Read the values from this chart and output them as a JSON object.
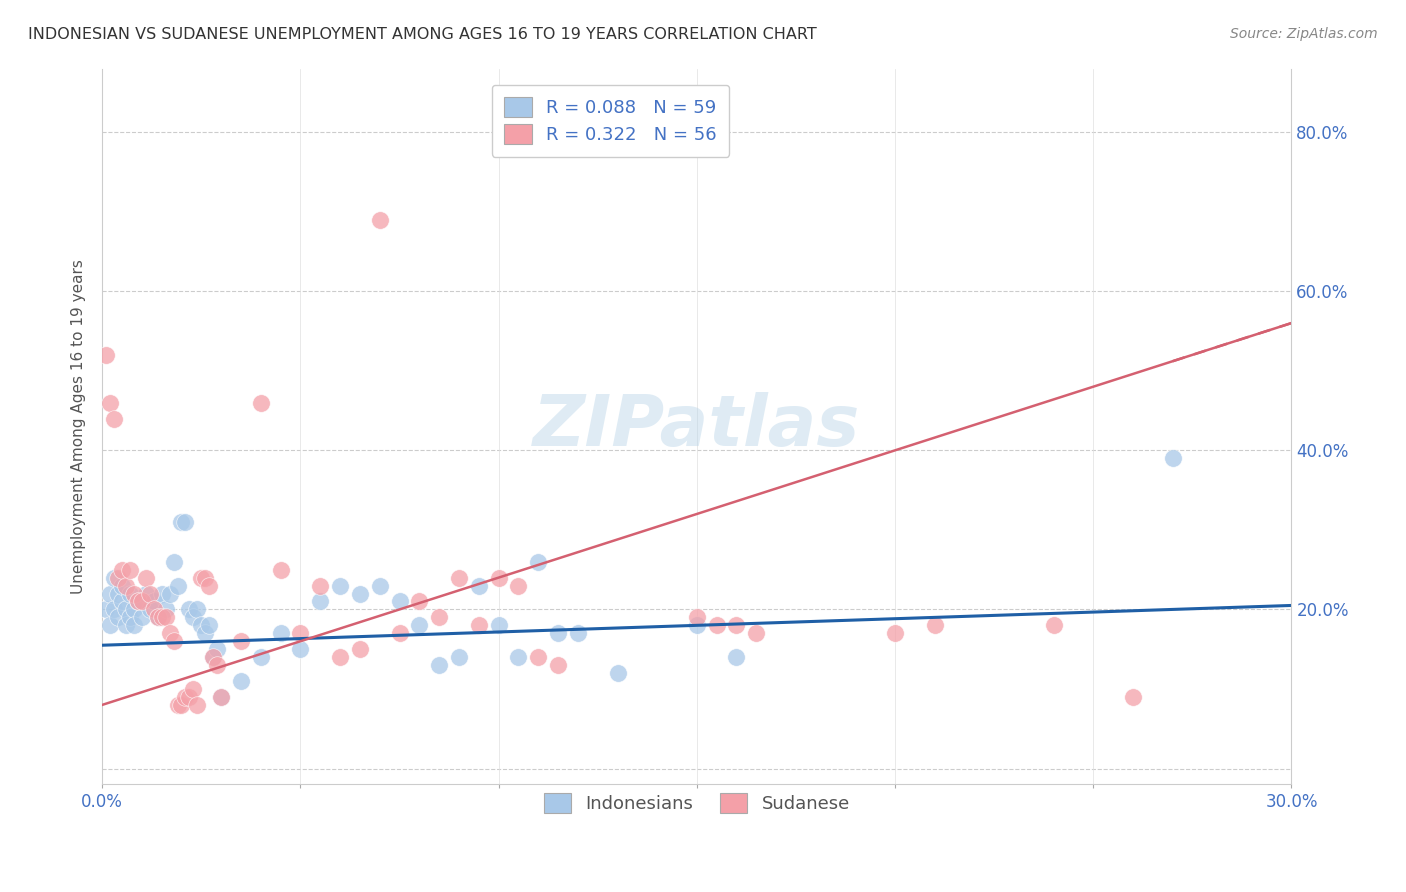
{
  "title": "INDONESIAN VS SUDANESE UNEMPLOYMENT AMONG AGES 16 TO 19 YEARS CORRELATION CHART",
  "source": "Source: ZipAtlas.com",
  "ylabel": "Unemployment Among Ages 16 to 19 years",
  "xlim": [
    0.0,
    0.3
  ],
  "ylim": [
    -0.02,
    0.88
  ],
  "xticks": [
    0.0,
    0.05,
    0.1,
    0.15,
    0.2,
    0.25,
    0.3
  ],
  "xtick_labels": [
    "0.0%",
    "",
    "",
    "",
    "",
    "",
    "30.0%"
  ],
  "yticks": [
    0.0,
    0.2,
    0.4,
    0.6,
    0.8
  ],
  "ytick_right_labels": [
    "",
    "20.0%",
    "40.0%",
    "60.0%",
    "80.0%"
  ],
  "indonesian_color": "#a8c8e8",
  "sudanese_color": "#f4a0a8",
  "indonesian_line_color": "#1f5fa6",
  "sudanese_line_color": "#d46070",
  "watermark": "ZIPatlas",
  "indo_line_y0": 0.155,
  "indo_line_y1": 0.205,
  "sudo_line_y0": 0.08,
  "sudo_line_y1": 0.56,
  "indonesian_points": [
    [
      0.001,
      0.2
    ],
    [
      0.002,
      0.22
    ],
    [
      0.002,
      0.18
    ],
    [
      0.003,
      0.24
    ],
    [
      0.003,
      0.2
    ],
    [
      0.004,
      0.19
    ],
    [
      0.004,
      0.22
    ],
    [
      0.005,
      0.21
    ],
    [
      0.005,
      0.23
    ],
    [
      0.006,
      0.2
    ],
    [
      0.006,
      0.18
    ],
    [
      0.007,
      0.22
    ],
    [
      0.007,
      0.19
    ],
    [
      0.008,
      0.2
    ],
    [
      0.008,
      0.18
    ],
    [
      0.009,
      0.21
    ],
    [
      0.01,
      0.19
    ],
    [
      0.011,
      0.22
    ],
    [
      0.012,
      0.2
    ],
    [
      0.013,
      0.21
    ],
    [
      0.014,
      0.19
    ],
    [
      0.015,
      0.22
    ],
    [
      0.016,
      0.2
    ],
    [
      0.017,
      0.22
    ],
    [
      0.018,
      0.26
    ],
    [
      0.019,
      0.23
    ],
    [
      0.02,
      0.31
    ],
    [
      0.021,
      0.31
    ],
    [
      0.022,
      0.2
    ],
    [
      0.023,
      0.19
    ],
    [
      0.024,
      0.2
    ],
    [
      0.025,
      0.18
    ],
    [
      0.026,
      0.17
    ],
    [
      0.027,
      0.18
    ],
    [
      0.028,
      0.14
    ],
    [
      0.029,
      0.15
    ],
    [
      0.03,
      0.09
    ],
    [
      0.035,
      0.11
    ],
    [
      0.04,
      0.14
    ],
    [
      0.045,
      0.17
    ],
    [
      0.05,
      0.15
    ],
    [
      0.055,
      0.21
    ],
    [
      0.06,
      0.23
    ],
    [
      0.065,
      0.22
    ],
    [
      0.07,
      0.23
    ],
    [
      0.075,
      0.21
    ],
    [
      0.08,
      0.18
    ],
    [
      0.085,
      0.13
    ],
    [
      0.09,
      0.14
    ],
    [
      0.095,
      0.23
    ],
    [
      0.1,
      0.18
    ],
    [
      0.105,
      0.14
    ],
    [
      0.11,
      0.26
    ],
    [
      0.115,
      0.17
    ],
    [
      0.12,
      0.17
    ],
    [
      0.13,
      0.12
    ],
    [
      0.15,
      0.18
    ],
    [
      0.16,
      0.14
    ],
    [
      0.27,
      0.39
    ]
  ],
  "sudanese_points": [
    [
      0.001,
      0.52
    ],
    [
      0.002,
      0.46
    ],
    [
      0.003,
      0.44
    ],
    [
      0.004,
      0.24
    ],
    [
      0.005,
      0.25
    ],
    [
      0.006,
      0.23
    ],
    [
      0.007,
      0.25
    ],
    [
      0.008,
      0.22
    ],
    [
      0.009,
      0.21
    ],
    [
      0.01,
      0.21
    ],
    [
      0.011,
      0.24
    ],
    [
      0.012,
      0.22
    ],
    [
      0.013,
      0.2
    ],
    [
      0.014,
      0.19
    ],
    [
      0.015,
      0.19
    ],
    [
      0.016,
      0.19
    ],
    [
      0.017,
      0.17
    ],
    [
      0.018,
      0.16
    ],
    [
      0.019,
      0.08
    ],
    [
      0.02,
      0.08
    ],
    [
      0.021,
      0.09
    ],
    [
      0.022,
      0.09
    ],
    [
      0.023,
      0.1
    ],
    [
      0.024,
      0.08
    ],
    [
      0.025,
      0.24
    ],
    [
      0.026,
      0.24
    ],
    [
      0.027,
      0.23
    ],
    [
      0.028,
      0.14
    ],
    [
      0.029,
      0.13
    ],
    [
      0.03,
      0.09
    ],
    [
      0.035,
      0.16
    ],
    [
      0.04,
      0.46
    ],
    [
      0.045,
      0.25
    ],
    [
      0.05,
      0.17
    ],
    [
      0.055,
      0.23
    ],
    [
      0.06,
      0.14
    ],
    [
      0.065,
      0.15
    ],
    [
      0.07,
      0.69
    ],
    [
      0.075,
      0.17
    ],
    [
      0.08,
      0.21
    ],
    [
      0.085,
      0.19
    ],
    [
      0.09,
      0.24
    ],
    [
      0.095,
      0.18
    ],
    [
      0.1,
      0.24
    ],
    [
      0.105,
      0.23
    ],
    [
      0.11,
      0.14
    ],
    [
      0.115,
      0.13
    ],
    [
      0.15,
      0.19
    ],
    [
      0.155,
      0.18
    ],
    [
      0.16,
      0.18
    ],
    [
      0.165,
      0.17
    ],
    [
      0.2,
      0.17
    ],
    [
      0.21,
      0.18
    ],
    [
      0.24,
      0.18
    ],
    [
      0.26,
      0.09
    ]
  ]
}
